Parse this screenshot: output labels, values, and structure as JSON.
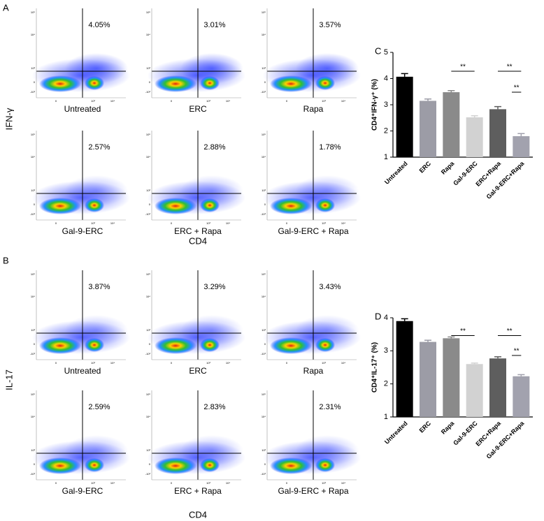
{
  "panel_letters": [
    "A",
    "B",
    "C",
    "D"
  ],
  "groups": [
    {
      "y_label": "IFN-γ",
      "x_label": "CD4",
      "plots": [
        {
          "label": "Untreated",
          "percent": "4.05%"
        },
        {
          "label": "ERC",
          "percent": "3.01%"
        },
        {
          "label": "Rapa",
          "percent": "3.57%"
        },
        {
          "label": "Gal-9-ERC",
          "percent": "2.57%"
        },
        {
          "label": "ERC + Rapa",
          "percent": "2.88%"
        },
        {
          "label": "Gal-9-ERC + Rapa",
          "percent": "1.78%"
        }
      ]
    },
    {
      "y_label": "IL-17",
      "x_label": "CD4",
      "plots": [
        {
          "label": "Untreated",
          "percent": "3.87%"
        },
        {
          "label": "ERC",
          "percent": "3.29%"
        },
        {
          "label": "Rapa",
          "percent": "3.43%"
        },
        {
          "label": "Gal-9-ERC",
          "percent": "2.59%"
        },
        {
          "label": "ERC + Rapa",
          "percent": "2.83%"
        },
        {
          "label": "Gal-9-ERC + Rapa",
          "percent": "2.31%"
        }
      ]
    }
  ],
  "flow_y_ticks": [
    "10⁵",
    "10⁴",
    "10³",
    "0",
    "-10³"
  ],
  "flow_x_ticks": [
    "0",
    "10³",
    "10⁴"
  ],
  "chart_data": [
    {
      "type": "bar",
      "y_label": "CD4⁺IFN-γ⁺ (%)",
      "categories": [
        "Untreated",
        "ERC",
        "Rapa",
        "Gal-9-ERC",
        "ERC+Rapa",
        "Gal-9-ERC+Rapa"
      ],
      "values": [
        4.07,
        3.15,
        3.48,
        2.52,
        2.83,
        1.8
      ],
      "errors": [
        0.12,
        0.07,
        0.06,
        0.06,
        0.1,
        0.1
      ],
      "colors": [
        "#000000",
        "#9c9ca6",
        "#8a8a8a",
        "#d2d2d2",
        "#5e5e5e",
        "#a2a2ae"
      ],
      "ylim": [
        1,
        5
      ],
      "yticks": [
        1,
        2,
        3,
        4,
        5
      ],
      "annotations": [
        "**",
        "**",
        "**"
      ]
    },
    {
      "type": "bar",
      "y_label": "CD4⁺IL-17⁺ (%)",
      "categories": [
        "Untreated",
        "ERC",
        "Rapa",
        "Gal-9-ERC",
        "ERC+Rapa",
        "Gal-9-ERC+Rapa"
      ],
      "values": [
        3.9,
        3.27,
        3.38,
        2.6,
        2.77,
        2.23
      ],
      "errors": [
        0.07,
        0.05,
        0.04,
        0.03,
        0.05,
        0.05
      ],
      "colors": [
        "#000000",
        "#9c9ca6",
        "#8a8a8a",
        "#d2d2d2",
        "#5e5e5e",
        "#a2a2ae"
      ],
      "ylim": [
        1,
        4
      ],
      "yticks": [
        1,
        2,
        3,
        4
      ],
      "annotations": [
        "**",
        "**",
        "**"
      ]
    }
  ]
}
